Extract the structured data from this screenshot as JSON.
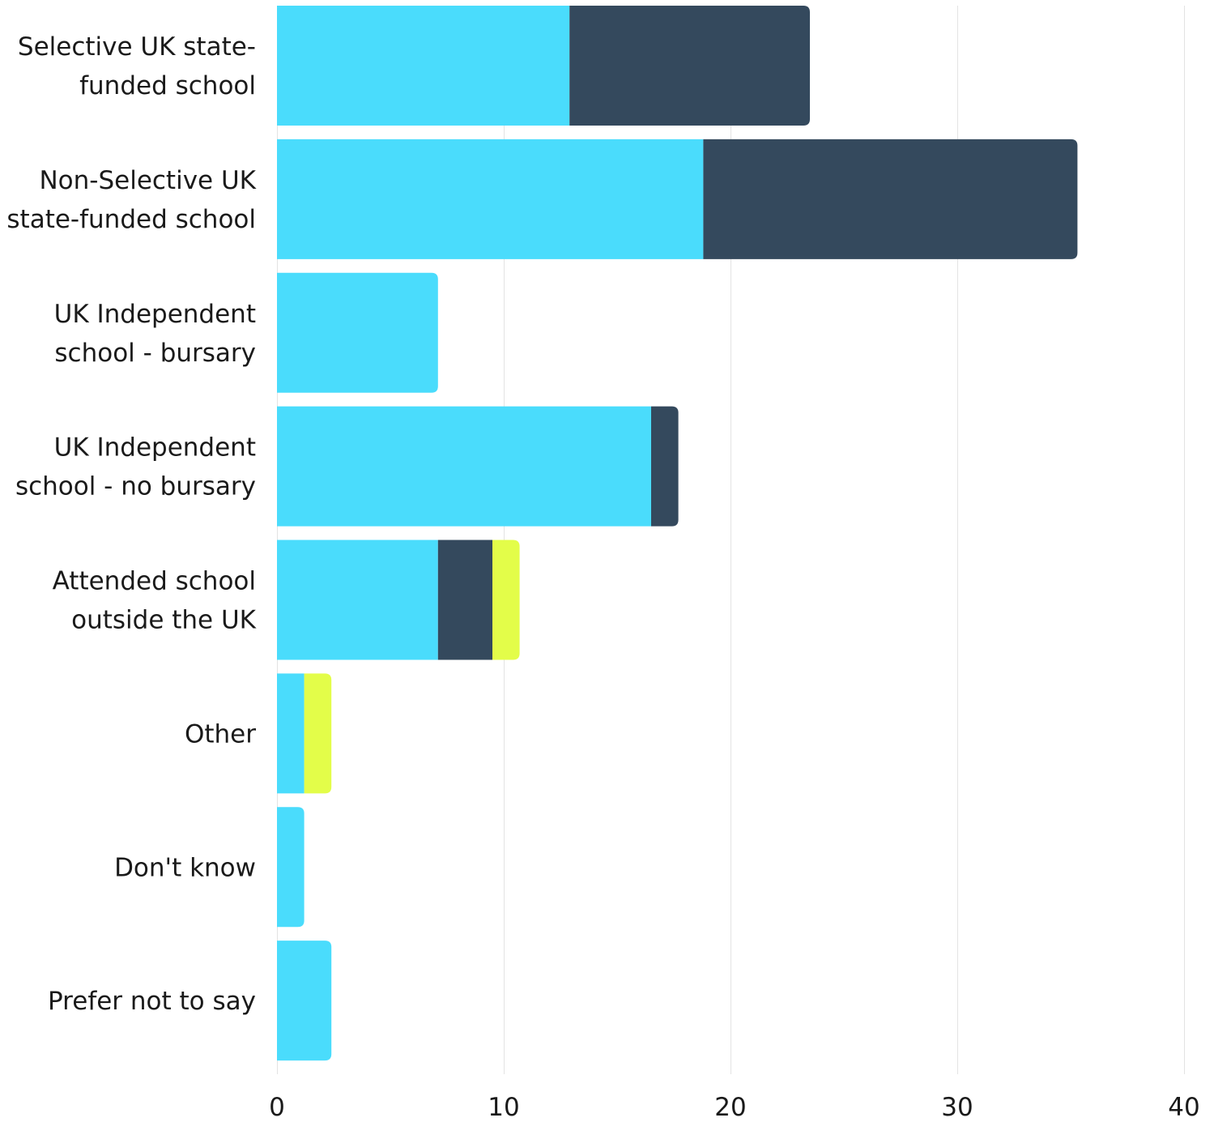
{
  "chart_data": {
    "type": "bar",
    "orientation": "horizontal",
    "stacked": true,
    "title": "",
    "xlabel": "",
    "ylabel": "",
    "xlim": [
      0,
      40
    ],
    "x_ticks": [
      0,
      10,
      20,
      30,
      40
    ],
    "grid": "vertical",
    "legend": "none",
    "categories": [
      [
        "Selective UK state-",
        "funded school"
      ],
      [
        "Non-Selective UK",
        "state-funded school"
      ],
      [
        "UK Independent",
        "school - bursary"
      ],
      [
        "UK Independent",
        "school - no bursary"
      ],
      [
        "Attended school",
        "outside the UK"
      ],
      [
        "Other"
      ],
      [
        "Don't know"
      ],
      [
        "Prefer not to say"
      ]
    ],
    "series": [
      {
        "color": "#4adcfc",
        "values": [
          12.9,
          18.8,
          7.1,
          16.5,
          7.1,
          1.2,
          1.2,
          2.4
        ]
      },
      {
        "color": "#34495d",
        "values": [
          10.6,
          16.5,
          0,
          1.2,
          2.4,
          0,
          0,
          0
        ]
      },
      {
        "color": "#e3fd49",
        "values": [
          0,
          0,
          0,
          0,
          1.2,
          1.2,
          0,
          0
        ]
      }
    ]
  }
}
